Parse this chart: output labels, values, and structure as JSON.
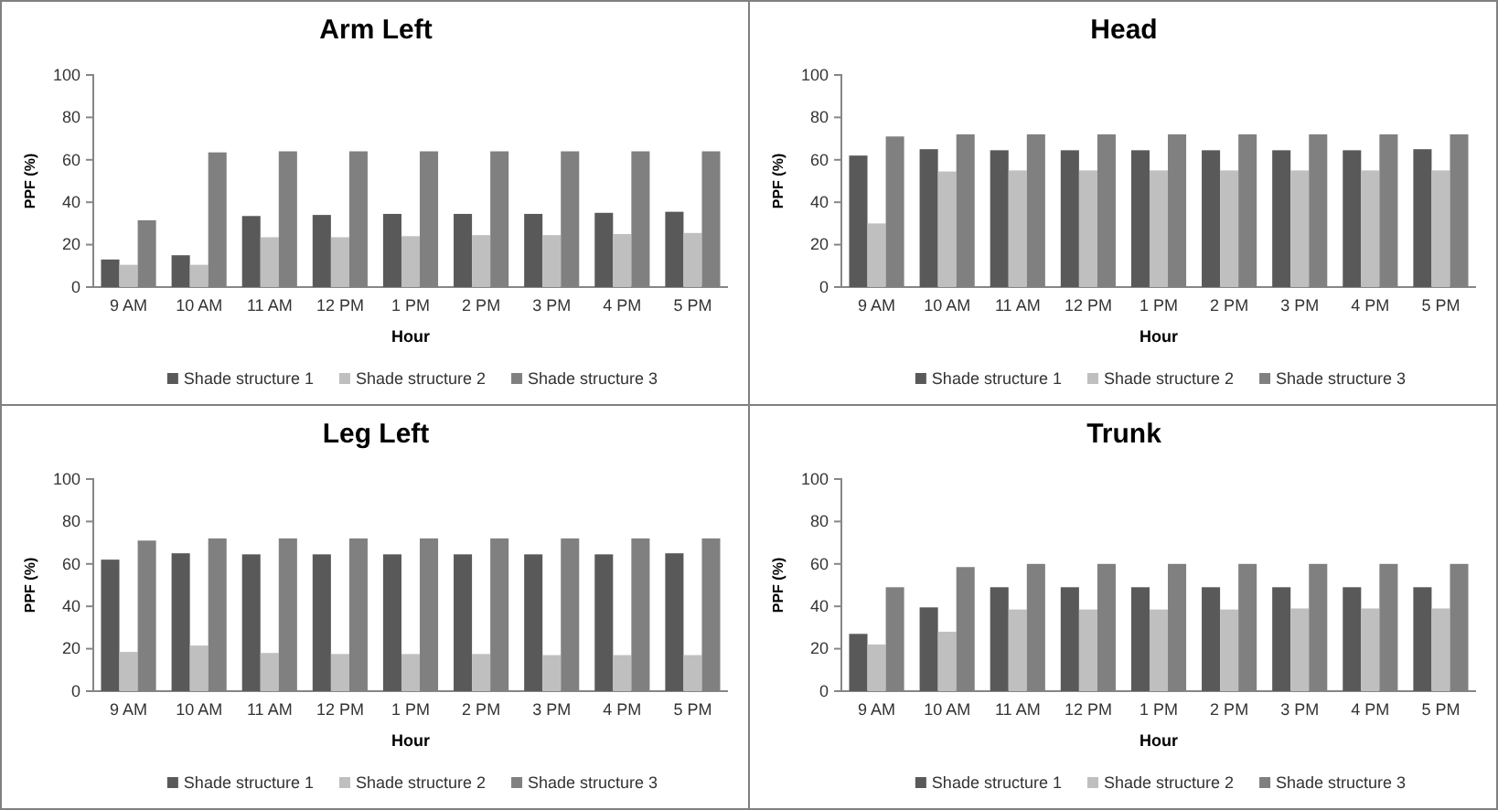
{
  "chart_data": [
    {
      "type": "bar",
      "title": "Arm Left",
      "xlabel": "Hour",
      "ylabel": "PPF (%)",
      "categories": [
        "9 AM",
        "10 AM",
        "11 AM",
        "12 PM",
        "1 PM",
        "2 PM",
        "3 PM",
        "4 PM",
        "5 PM"
      ],
      "ylim": [
        0,
        100
      ],
      "yticks": [
        0,
        20,
        40,
        60,
        80,
        100
      ],
      "grid": false,
      "legend": "bottom",
      "series": [
        {
          "name": "Shade structure 1",
          "color": "#595959",
          "values": [
            13,
            15,
            33.5,
            34,
            34.5,
            34.5,
            34.5,
            35,
            35.5
          ]
        },
        {
          "name": "Shade structure 2",
          "color": "#bfbfbf",
          "values": [
            10.5,
            10.5,
            23.5,
            23.5,
            24,
            24.5,
            24.5,
            25,
            25.5
          ]
        },
        {
          "name": "Shade structure 3",
          "color": "#808080",
          "values": [
            31.5,
            63.5,
            64,
            64,
            64,
            64,
            64,
            64,
            64
          ]
        }
      ]
    },
    {
      "type": "bar",
      "title": "Head",
      "xlabel": "Hour",
      "ylabel": "PPF (%)",
      "categories": [
        "9 AM",
        "10 AM",
        "11 AM",
        "12 PM",
        "1 PM",
        "2 PM",
        "3 PM",
        "4 PM",
        "5 PM"
      ],
      "ylim": [
        0,
        100
      ],
      "yticks": [
        0,
        20,
        40,
        60,
        80,
        100
      ],
      "grid": false,
      "legend": "bottom",
      "series": [
        {
          "name": "Shade structure 1",
          "color": "#595959",
          "values": [
            62,
            65,
            64.5,
            64.5,
            64.5,
            64.5,
            64.5,
            64.5,
            65
          ]
        },
        {
          "name": "Shade structure 2",
          "color": "#bfbfbf",
          "values": [
            30,
            54.5,
            55,
            55,
            55,
            55,
            55,
            55,
            55
          ]
        },
        {
          "name": "Shade structure 3",
          "color": "#808080",
          "values": [
            71,
            72,
            72,
            72,
            72,
            72,
            72,
            72,
            72
          ]
        }
      ]
    },
    {
      "type": "bar",
      "title": "Leg Left",
      "xlabel": "Hour",
      "ylabel": "PPF (%)",
      "categories": [
        "9 AM",
        "10 AM",
        "11 AM",
        "12 PM",
        "1 PM",
        "2 PM",
        "3 PM",
        "4 PM",
        "5 PM"
      ],
      "ylim": [
        0,
        100
      ],
      "yticks": [
        0,
        20,
        40,
        60,
        80,
        100
      ],
      "grid": false,
      "legend": "bottom",
      "series": [
        {
          "name": "Shade structure 1",
          "color": "#595959",
          "values": [
            62,
            65,
            64.5,
            64.5,
            64.5,
            64.5,
            64.5,
            64.5,
            65
          ]
        },
        {
          "name": "Shade structure 2",
          "color": "#bfbfbf",
          "values": [
            18.5,
            21.5,
            18,
            17.5,
            17.5,
            17.5,
            17,
            17,
            17
          ]
        },
        {
          "name": "Shade structure 3",
          "color": "#808080",
          "values": [
            71,
            72,
            72,
            72,
            72,
            72,
            72,
            72,
            72
          ]
        }
      ]
    },
    {
      "type": "bar",
      "title": "Trunk",
      "xlabel": "Hour",
      "ylabel": "PPF (%)",
      "categories": [
        "9 AM",
        "10 AM",
        "11 AM",
        "12 PM",
        "1 PM",
        "2 PM",
        "3 PM",
        "4 PM",
        "5 PM"
      ],
      "ylim": [
        0,
        100
      ],
      "yticks": [
        0,
        20,
        40,
        60,
        80,
        100
      ],
      "grid": false,
      "legend": "bottom",
      "series": [
        {
          "name": "Shade structure 1",
          "color": "#595959",
          "values": [
            27,
            39.5,
            49,
            49,
            49,
            49,
            49,
            49,
            49
          ]
        },
        {
          "name": "Shade structure 2",
          "color": "#bfbfbf",
          "values": [
            22,
            28,
            38.5,
            38.5,
            38.5,
            38.5,
            39,
            39,
            39
          ]
        },
        {
          "name": "Shade structure 3",
          "color": "#808080",
          "values": [
            49,
            58.5,
            60,
            60,
            60,
            60,
            60,
            60,
            60
          ]
        }
      ]
    }
  ]
}
